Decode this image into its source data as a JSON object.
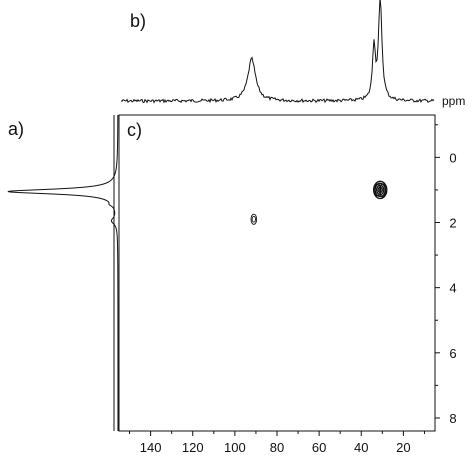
{
  "panel_labels": {
    "a": "a)",
    "b": "b)",
    "c": "c)"
  },
  "ppm_unit_label": "ppm",
  "colors": {
    "ink": "#111111",
    "background": "#ffffff"
  },
  "chart_data": [
    {
      "type": "heatmap",
      "title": "",
      "xlabel": "",
      "ylabel": "ppm",
      "x_axis_reversed": true,
      "y_axis_reversed": true,
      "xlim": [
        155,
        5
      ],
      "ylim": [
        -1.3,
        8.4
      ],
      "x_ticks": [
        140,
        120,
        100,
        80,
        60,
        40,
        20
      ],
      "y_ticks": [
        0,
        2,
        4,
        6,
        8
      ],
      "grid": false,
      "cross_peaks": [
        {
          "x": 31,
          "y": 1.0,
          "levels": 4,
          "strength": "strong"
        },
        {
          "x": 91,
          "y": 1.9,
          "levels": 2,
          "strength": "weak"
        }
      ]
    },
    {
      "type": "line",
      "title": "",
      "xlabel": "ppm",
      "x_axis_reversed": true,
      "xlim": [
        155,
        5
      ],
      "peaks": [
        {
          "x": 92,
          "height": 0.42,
          "width": 2.2
        },
        {
          "x": 34,
          "height": 0.53,
          "width": 0.8
        },
        {
          "x": 31,
          "height": 1.0,
          "width": 1.0
        }
      ]
    },
    {
      "type": "line",
      "title": "",
      "ylabel": "",
      "orientation": "vertical",
      "y_axis_reversed": true,
      "ylim": [
        -1.3,
        8.4
      ],
      "peaks": [
        {
          "y": 1.05,
          "height": 1.0,
          "width": 0.09
        },
        {
          "y": 1.45,
          "height": 0.03,
          "width": 0.06
        },
        {
          "y": 1.95,
          "height": 0.05,
          "width": 0.12
        }
      ]
    }
  ]
}
